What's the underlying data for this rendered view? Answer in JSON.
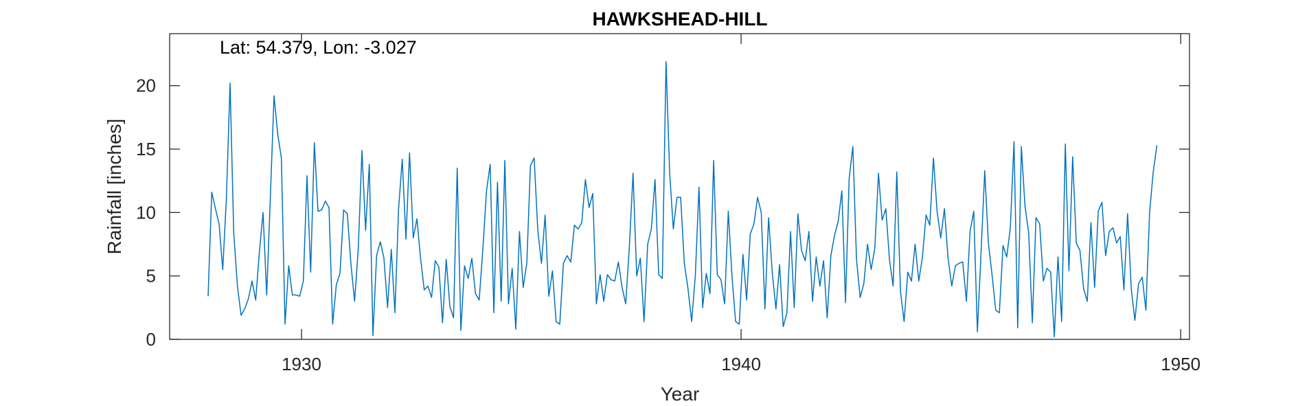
{
  "chart_data": {
    "type": "line",
    "title": "HAWKSHEAD-HILL",
    "annotation": "Lat: 54.379, Lon: -3.027",
    "xlabel": "Year",
    "ylabel": "Rainfall [inches]",
    "xlim": [
      1927,
      1950.2
    ],
    "ylim": [
      0,
      24.1
    ],
    "xticks": [
      1930,
      1940,
      1950
    ],
    "yticks": [
      0,
      5,
      10,
      15,
      20
    ],
    "grid": false,
    "line_color": "#0072BD",
    "series": [
      {
        "x": [
          1927.875,
          1927.958,
          1928.042,
          1928.125,
          1928.208,
          1928.292,
          1928.375,
          1928.458,
          1928.542,
          1928.625,
          1928.708,
          1928.792,
          1928.875,
          1928.958,
          1929.042,
          1929.125,
          1929.208,
          1929.292,
          1929.375,
          1929.458,
          1929.542,
          1929.625,
          1929.708,
          1929.792,
          1929.875,
          1929.958,
          1930.042,
          1930.125,
          1930.208,
          1930.292,
          1930.375,
          1930.458,
          1930.542,
          1930.625,
          1930.708,
          1930.792,
          1930.875,
          1930.958,
          1931.042,
          1931.125,
          1931.208,
          1931.292,
          1931.375,
          1931.458,
          1931.542,
          1931.625,
          1931.708,
          1931.792,
          1931.875,
          1931.958,
          1932.042,
          1932.125,
          1932.208,
          1932.292,
          1932.375,
          1932.458,
          1932.542,
          1932.625,
          1932.708,
          1932.792,
          1932.875,
          1932.958,
          1933.042,
          1933.125,
          1933.208,
          1933.292,
          1933.375,
          1933.458,
          1933.542,
          1933.625,
          1933.708,
          1933.792,
          1933.875,
          1933.958,
          1934.042,
          1934.125,
          1934.208,
          1934.292,
          1934.375,
          1934.458,
          1934.542,
          1934.625,
          1934.708,
          1934.792,
          1934.875,
          1934.958,
          1935.042,
          1935.125,
          1935.208,
          1935.292,
          1935.375,
          1935.458,
          1935.542,
          1935.625,
          1935.708,
          1935.792,
          1935.875,
          1935.958,
          1936.042,
          1936.125,
          1936.208,
          1936.292,
          1936.375,
          1936.458,
          1936.542,
          1936.625,
          1936.708,
          1936.792,
          1936.875,
          1936.958,
          1937.042,
          1937.125,
          1937.208,
          1937.292,
          1937.375,
          1937.458,
          1937.542,
          1937.625,
          1937.708,
          1937.792,
          1937.875,
          1937.958,
          1938.042,
          1938.125,
          1938.208,
          1938.292,
          1938.375,
          1938.458,
          1938.542,
          1938.625,
          1938.708,
          1938.792,
          1938.875,
          1938.958,
          1939.042,
          1939.125,
          1939.208,
          1939.292,
          1939.375,
          1939.458,
          1939.542,
          1939.625,
          1939.708,
          1939.792,
          1939.875,
          1939.958,
          1940.042,
          1940.125,
          1940.208,
          1940.292,
          1940.375,
          1940.458,
          1940.542,
          1940.625,
          1940.708,
          1940.792,
          1940.875,
          1940.958,
          1941.042,
          1941.125,
          1941.208,
          1941.292,
          1941.375,
          1941.458,
          1941.542,
          1941.625,
          1941.708,
          1941.792,
          1941.875,
          1941.958,
          1942.042,
          1942.125,
          1942.208,
          1942.292,
          1942.375,
          1942.458,
          1942.542,
          1942.625,
          1942.708,
          1942.792,
          1942.875,
          1942.958,
          1943.042,
          1943.125,
          1943.208,
          1943.292,
          1943.375,
          1943.458,
          1943.542,
          1943.625,
          1943.708,
          1943.792,
          1943.875,
          1943.958,
          1944.042,
          1944.125,
          1944.208,
          1944.292,
          1944.375,
          1944.458,
          1944.542,
          1944.625,
          1944.708,
          1944.792,
          1944.875,
          1944.958,
          1945.042,
          1945.125,
          1945.208,
          1945.292,
          1945.375,
          1945.458,
          1945.542,
          1945.625,
          1945.708,
          1945.792,
          1945.875,
          1945.958,
          1946.042,
          1946.125,
          1946.208,
          1946.292,
          1946.375,
          1946.458,
          1946.542,
          1946.625,
          1946.708,
          1946.792,
          1946.875,
          1946.958,
          1947.042,
          1947.125,
          1947.208,
          1947.292,
          1947.375,
          1947.458,
          1947.542,
          1947.625,
          1947.708,
          1947.792,
          1947.875,
          1947.958,
          1948.042,
          1948.125,
          1948.208,
          1948.292,
          1948.375,
          1948.458,
          1948.542,
          1948.625,
          1948.708,
          1948.792,
          1948.875,
          1948.958,
          1949.042,
          1949.125,
          1949.208,
          1949.292,
          1949.375,
          1949.458
        ],
        "values": [
          3.4,
          11.6,
          10.3,
          9.1,
          5.5,
          11.2,
          20.2,
          8.4,
          4.2,
          1.9,
          2.4,
          3.2,
          4.6,
          3.1,
          6.9,
          10.0,
          3.5,
          11.3,
          19.2,
          16.2,
          14.3,
          1.2,
          5.8,
          3.5,
          3.5,
          3.4,
          4.6,
          12.9,
          5.3,
          15.5,
          10.1,
          10.2,
          10.9,
          10.4,
          1.2,
          4.3,
          5.2,
          10.2,
          9.9,
          5.9,
          3.0,
          7.2,
          14.9,
          8.6,
          13.8,
          0.3,
          6.6,
          7.7,
          6.4,
          2.5,
          7.1,
          2.1,
          10.3,
          14.2,
          7.9,
          14.7,
          8.0,
          9.5,
          6.4,
          3.9,
          4.2,
          3.3,
          6.2,
          5.7,
          1.3,
          6.3,
          2.6,
          1.7,
          13.5,
          0.7,
          5.8,
          4.8,
          6.4,
          3.6,
          3.1,
          7.1,
          11.7,
          13.8,
          2.1,
          12.4,
          3.0,
          14.1,
          2.8,
          5.6,
          0.8,
          8.5,
          4.1,
          6.0,
          13.7,
          14.3,
          8.6,
          6.0,
          9.8,
          3.4,
          5.4,
          1.4,
          1.2,
          6.0,
          6.6,
          6.1,
          9.0,
          8.7,
          9.2,
          12.6,
          10.4,
          11.5,
          2.8,
          5.1,
          3.0,
          5.1,
          4.7,
          4.6,
          6.1,
          4.1,
          2.8,
          7.3,
          13.1,
          5.0,
          6.4,
          1.4,
          7.5,
          8.7,
          12.6,
          5.1,
          4.8,
          21.9,
          13.1,
          8.7,
          11.2,
          11.2,
          6.0,
          4.0,
          1.4,
          5.0,
          12.0,
          2.5,
          5.2,
          3.6,
          14.1,
          5.1,
          4.7,
          2.8,
          10.1,
          5.0,
          1.4,
          1.2,
          6.7,
          3.1,
          8.3,
          9.1,
          11.2,
          10.0,
          2.4,
          9.6,
          5.3,
          2.4,
          5.9,
          1.0,
          2.1,
          8.5,
          2.5,
          9.9,
          7.0,
          6.2,
          8.5,
          3.0,
          6.5,
          4.2,
          6.2,
          1.7,
          6.6,
          8.2,
          9.3,
          11.7,
          2.9,
          12.7,
          15.2,
          6.3,
          3.3,
          4.4,
          7.5,
          5.5,
          7.2,
          13.1,
          9.4,
          10.3,
          6.3,
          4.2,
          13.2,
          3.8,
          1.4,
          5.3,
          4.6,
          7.5,
          4.6,
          6.5,
          9.8,
          9.0,
          14.3,
          10.1,
          8.0,
          10.3,
          6.4,
          4.2,
          5.8,
          6.0,
          6.1,
          3.0,
          8.5,
          10.1,
          0.6,
          6.8,
          13.3,
          7.6,
          5.1,
          2.3,
          2.1,
          7.4,
          6.5,
          8.8,
          15.6,
          0.9,
          15.2,
          10.5,
          8.4,
          1.3,
          9.6,
          9.1,
          4.6,
          5.6,
          5.3,
          0.2,
          6.5,
          1.4,
          15.4,
          5.4,
          14.4,
          7.6,
          7.0,
          4.0,
          3.0,
          9.2,
          4.1,
          10.1,
          10.8,
          6.6,
          8.5,
          8.8,
          7.6,
          8.1,
          3.9,
          9.9,
          4.0,
          1.5,
          4.4,
          4.9,
          2.3,
          10.0,
          13.2,
          15.3
        ]
      }
    ]
  }
}
